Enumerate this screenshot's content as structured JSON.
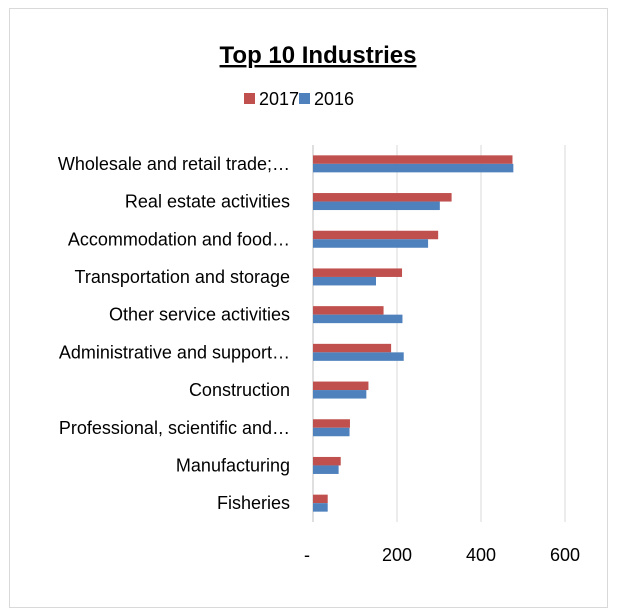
{
  "chart_data": {
    "type": "bar",
    "orientation": "horizontal",
    "title": "Top 10 Industries",
    "categories": [
      "Wholesale and retail trade;…",
      "Real estate activities",
      "Accommodation and food…",
      "Transportation and storage",
      "Other service activities",
      "Administrative and support…",
      "Construction",
      "Professional, scientific and…",
      "Manufacturing",
      "Fisheries"
    ],
    "series": [
      {
        "name": "2017",
        "color": "#c0504d",
        "values": [
          475,
          330,
          298,
          212,
          168,
          186,
          132,
          88,
          66,
          35
        ]
      },
      {
        "name": "2016",
        "color": "#4f81bd",
        "values": [
          477,
          302,
          274,
          150,
          213,
          216,
          127,
          87,
          61,
          35
        ]
      }
    ],
    "xlim": [
      0,
      600
    ],
    "xticks": [
      {
        "value": 0,
        "label": "-"
      },
      {
        "value": 200,
        "label": "200"
      },
      {
        "value": 400,
        "label": "400"
      },
      {
        "value": 600,
        "label": "600"
      }
    ],
    "grid": true,
    "legend_position": "top"
  }
}
